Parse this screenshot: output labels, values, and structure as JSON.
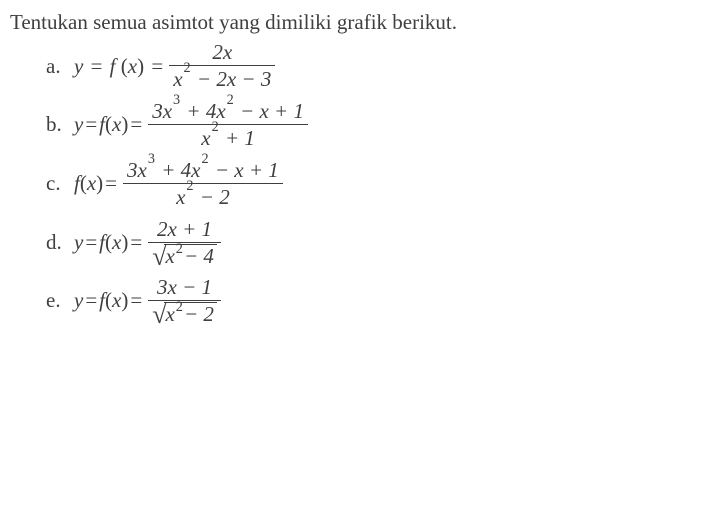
{
  "heading": "Tentukan semua asimtot yang dimiliki grafik berikut.",
  "text_color": "#403e3f",
  "background_color": "#ffffff",
  "font_family": "Times New Roman",
  "base_fontsize_pt": 16,
  "items": [
    {
      "label": "a.",
      "lhs": "y = f(x) =",
      "numerator": "2x",
      "denominator_parts": [
        "x",
        "2",
        " − 2x − 3"
      ],
      "den_has_sqrt": false
    },
    {
      "label": "b.",
      "lhs": "y = f(x) =",
      "numerator_parts": [
        "3x",
        "3",
        " + 4x",
        "2",
        " − x + 1"
      ],
      "denominator_parts": [
        "x",
        "2",
        " + 1"
      ],
      "den_has_sqrt": false
    },
    {
      "label": "c.",
      "lhs": "f(x) =",
      "numerator_parts": [
        "3x",
        "3",
        " + 4x",
        "2",
        " − x + 1"
      ],
      "denominator_parts": [
        "x",
        "2",
        " − 2"
      ],
      "den_has_sqrt": false
    },
    {
      "label": "d.",
      "lhs": "y = f(x) =",
      "numerator": "2x + 1",
      "denominator_parts": [
        "x",
        "2",
        " − 4"
      ],
      "den_has_sqrt": true
    },
    {
      "label": "e.",
      "lhs": "y = f(x) =",
      "numerator": "3x − 1",
      "denominator_parts": [
        "x",
        "2",
        " − 2"
      ],
      "den_has_sqrt": true
    }
  ]
}
